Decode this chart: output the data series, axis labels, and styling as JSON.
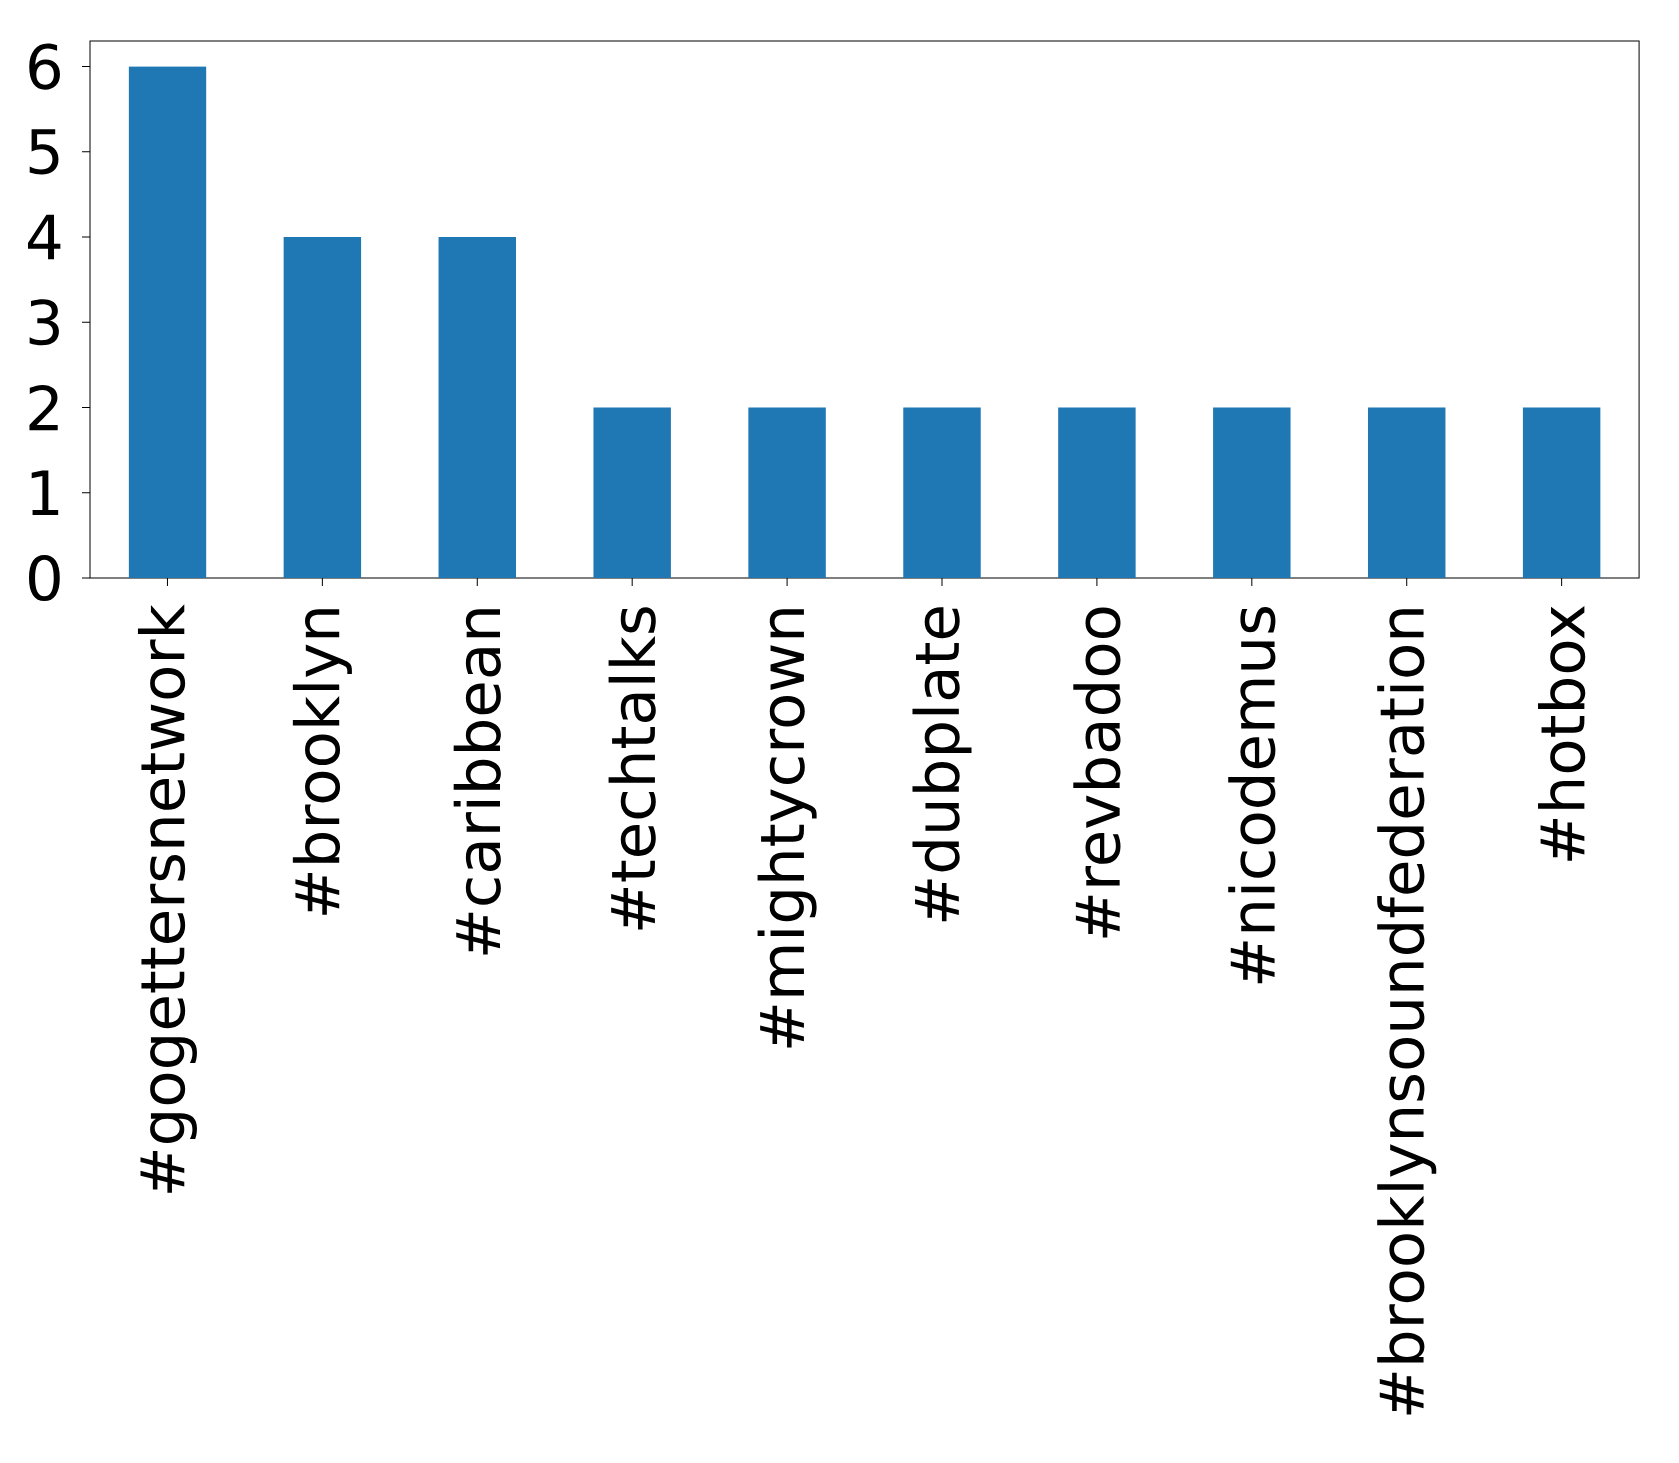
{
  "chart_data": {
    "type": "bar",
    "categories": [
      "#gogettersnetwork",
      "#brooklyn",
      "#caribbean",
      "#techtalks",
      "#mightycrown",
      "#dubplate",
      "#revbadoo",
      "#nicodemus",
      "#brooklynsoundfederation",
      "#hotbox"
    ],
    "values": [
      6,
      4,
      4,
      2,
      2,
      2,
      2,
      2,
      2,
      2
    ],
    "color": "#1f77b4",
    "ylim": [
      0,
      6.3
    ],
    "yticks": [
      0,
      1,
      2,
      3,
      4,
      5,
      6
    ]
  }
}
